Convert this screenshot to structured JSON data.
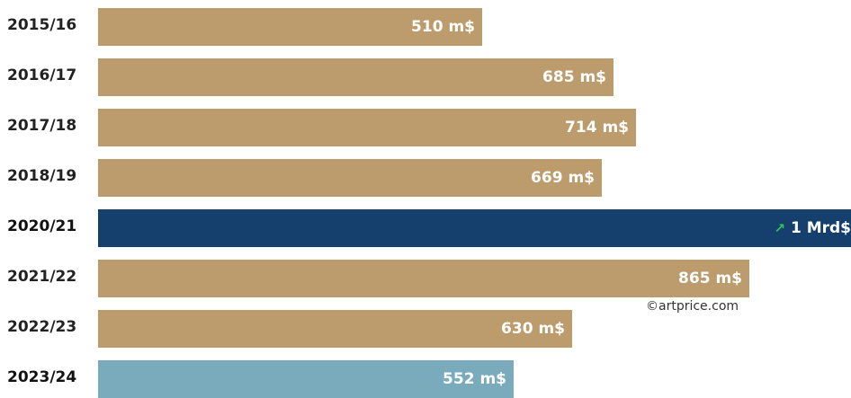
{
  "chart_data": {
    "type": "bar",
    "orientation": "horizontal",
    "title": "",
    "xlabel": "",
    "ylabel": "",
    "xlim": [
      0,
      1000
    ],
    "grid": false,
    "categories": [
      "2015/16",
      "2016/17",
      "2017/18",
      "2018/19",
      "2020/21",
      "2021/22",
      "2022/23",
      "2023/24"
    ],
    "values": [
      510,
      685,
      714,
      669,
      1000,
      865,
      630,
      552
    ],
    "value_labels": [
      "510 m$",
      "685 m$",
      "714 m$",
      "669 m$",
      "1 Mrd$",
      "865 m$",
      "630 m$",
      "552 m$"
    ],
    "bold_categories": [
      "2020/21",
      "2023/24"
    ],
    "highlight_index": 4,
    "highlight_arrow": "up-right-arrow-icon",
    "colors": {
      "default": "#bc9c6c",
      "highlight": "#15406e",
      "latest": "#7aabbd",
      "arrow": "#2fc15a"
    },
    "bar_colors": [
      "default",
      "default",
      "default",
      "default",
      "highlight",
      "default",
      "default",
      "latest"
    ]
  },
  "credit": "©artprice.com"
}
